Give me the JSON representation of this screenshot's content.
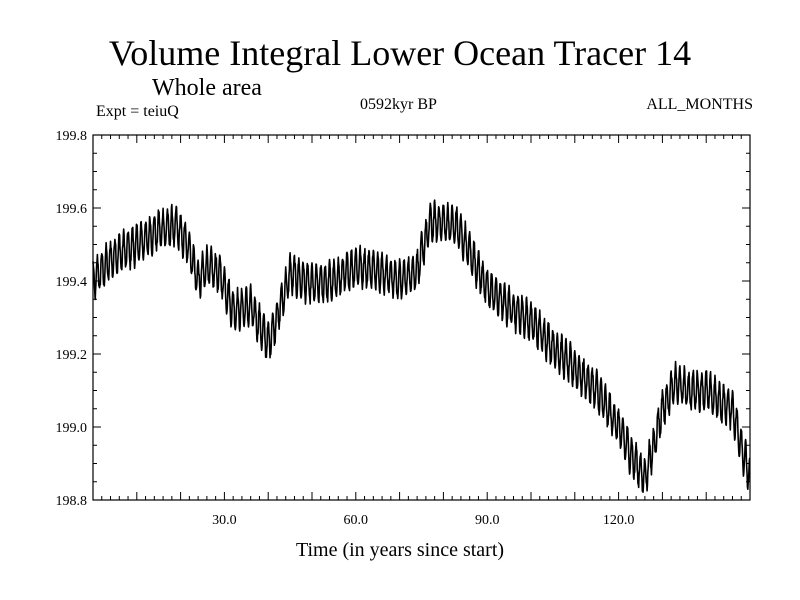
{
  "header": {
    "title": "Volume Integral Lower Ocean Tracer 14",
    "subtitle": "Whole area",
    "experiment": "Expt = teiuQ",
    "period": "0592kyr BP",
    "months": "ALL_MONTHS"
  },
  "chart_data": {
    "type": "line",
    "title": "Volume Integral Lower Ocean Tracer 14",
    "subtitle": "Whole area",
    "xlabel": "Time (in years since start)",
    "ylabel": "",
    "xlim": [
      0,
      150
    ],
    "ylim": [
      198.8,
      199.8
    ],
    "xticks": [
      30,
      60,
      90,
      120
    ],
    "xtick_labels": [
      "30.0",
      "60.0",
      "90.0",
      "120.0"
    ],
    "yticks": [
      198.8,
      199.0,
      199.2,
      199.4,
      199.6,
      199.8
    ],
    "ytick_labels": [
      "198.8",
      "199.0",
      "199.2",
      "199.4",
      "199.6",
      "199.8"
    ],
    "grid": false,
    "series": [
      {
        "name": "Lower Ocean Tracer 14",
        "color": "#000000",
        "seasonal_amplitude": 0.05,
        "trend": {
          "x": [
            0,
            2,
            5,
            10,
            15,
            19,
            22,
            24,
            26,
            29,
            32,
            36,
            40,
            42,
            45,
            50,
            55,
            60,
            65,
            70,
            74,
            77,
            80,
            83,
            86,
            90,
            95,
            100,
            105,
            110,
            115,
            120,
            123,
            126,
            128,
            130,
            133,
            136,
            140,
            143,
            146,
            148,
            150
          ],
          "y": [
            199.4,
            199.43,
            199.47,
            199.5,
            199.54,
            199.55,
            199.49,
            199.4,
            199.44,
            199.42,
            199.32,
            199.33,
            199.23,
            199.3,
            199.42,
            199.39,
            199.4,
            199.44,
            199.43,
            199.4,
            199.43,
            199.56,
            199.56,
            199.55,
            199.48,
            199.38,
            199.33,
            199.29,
            199.22,
            199.16,
            199.1,
            199.0,
            198.92,
            198.86,
            198.95,
            199.05,
            199.12,
            199.1,
            199.1,
            199.07,
            199.05,
            198.95,
            198.86
          ]
        }
      }
    ]
  }
}
